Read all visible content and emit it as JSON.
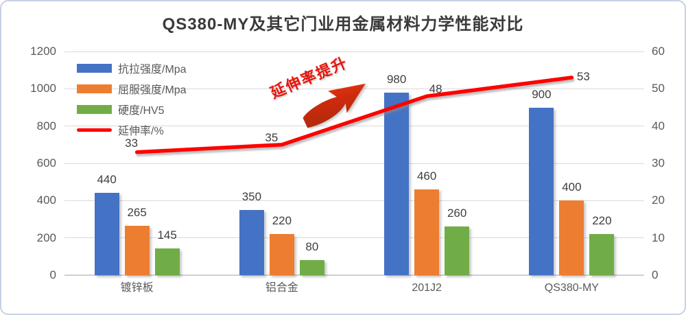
{
  "title": "QS380-MY及其它门业用金属材料力学性能对比",
  "annotation": {
    "text": "延伸率提升",
    "icon": "up-right-arrow"
  },
  "colors": {
    "bar_blue": "#4472C4",
    "bar_orange": "#ED7D31",
    "bar_green": "#70AD47",
    "line_red": "#FE0000",
    "annotation_red": "#E8150D",
    "arrow_dark": "#A8290F",
    "arrow_bright": "#E2330F",
    "axis_text": "#595959",
    "label_text": "#3D3D3D",
    "gridline": "#D9D9D9",
    "frame_border": "#C7D1E2"
  },
  "chart_data": {
    "type": "bar",
    "subtype": "bar+line combo, dual axis",
    "title": "QS380-MY及其它门业用金属材料力学性能对比",
    "categories": [
      "镀锌板",
      "铝合金",
      "201J2",
      "QS380-MY"
    ],
    "series": [
      {
        "name": "抗拉强度/Mpa",
        "type": "bar",
        "axis": "left",
        "color": "#4472C4",
        "values": [
          440,
          350,
          980,
          900
        ]
      },
      {
        "name": "屈服强度/Mpa",
        "type": "bar",
        "axis": "left",
        "color": "#ED7D31",
        "values": [
          265,
          220,
          460,
          400
        ]
      },
      {
        "name": "硬度/HV5",
        "type": "bar",
        "axis": "left",
        "color": "#70AD47",
        "values": [
          145,
          80,
          260,
          220
        ]
      },
      {
        "name": "延伸率/%",
        "type": "line",
        "axis": "right",
        "color": "#FE0000",
        "values": [
          33,
          35,
          48,
          53
        ]
      }
    ],
    "left_axis": {
      "min": 0,
      "max": 1200,
      "step": 200,
      "ticks": [
        "0",
        "200",
        "400",
        "600",
        "800",
        "1000",
        "1200"
      ]
    },
    "right_axis": {
      "min": 0,
      "max": 60,
      "step": 10,
      "ticks": [
        "0",
        "10",
        "20",
        "30",
        "40",
        "50",
        "60"
      ]
    },
    "legend_position": "top-left",
    "legend_entries": [
      "抗拉强度/Mpa",
      "屈服强度/Mpa",
      "硬度/HV5",
      "延伸率/%"
    ],
    "grid": true,
    "annotation": "延伸率提升",
    "data_labels": true
  }
}
